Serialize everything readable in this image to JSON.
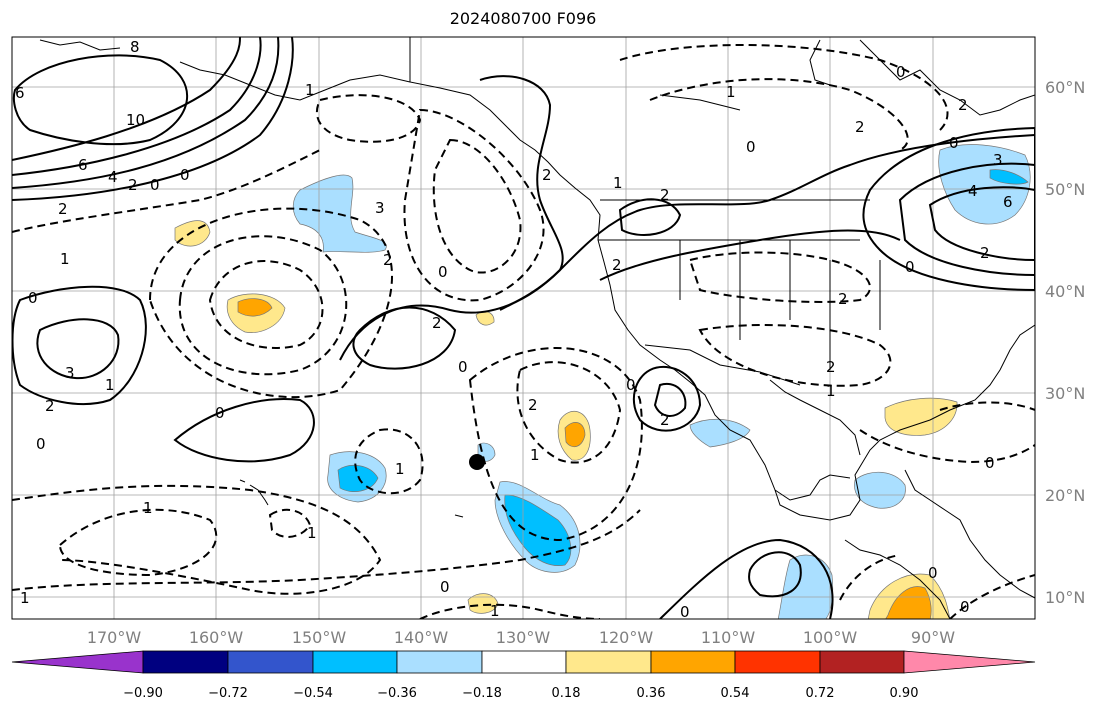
{
  "title": "2024080700 F096",
  "colors": {
    "background": "#ffffff",
    "grid": "#a0a0a0",
    "coast": "#000000",
    "axis_labels": "#808080"
  },
  "map": {
    "lon_range": [
      -180,
      -80
    ],
    "lat_range": [
      8,
      65
    ],
    "lat_labels": [
      "60°N",
      "50°N",
      "40°N",
      "30°N",
      "20°N",
      "10°N"
    ],
    "lon_labels": [
      "170°W",
      "160°W",
      "150°W",
      "140°W",
      "130°W",
      "120°W",
      "110°W",
      "100°W",
      "90°W"
    ],
    "marker": {
      "type": "point",
      "lon": -134.5,
      "lat": 23.3,
      "color": "#000000"
    }
  },
  "contour_labels": [
    "8",
    "6",
    "10",
    "6",
    "4",
    "2",
    "0",
    "0",
    "2",
    "1",
    "3",
    "2",
    "1",
    "3",
    "2",
    "0",
    "1",
    "0",
    "0",
    "2",
    "2",
    "0",
    "2",
    "2",
    "0",
    "1",
    "2",
    "0",
    "2",
    "1",
    "2",
    "0",
    "1",
    "0",
    "1",
    "1",
    "1",
    "0",
    "1",
    "0",
    "0",
    "2",
    "1",
    "2",
    "0",
    "3",
    "4",
    "6",
    "0",
    "2",
    "1",
    "2",
    "0",
    "0"
  ],
  "colorbar": {
    "colors": [
      "#9933cc",
      "#000080",
      "#3355cc",
      "#00bfff",
      "#aadfff",
      "#ffffff",
      "#ffe88c",
      "#ffa500",
      "#ff3300",
      "#b22222",
      "#ff88aa"
    ],
    "tick_labels": [
      "−0.90",
      "−0.72",
      "−0.54",
      "−0.36",
      "−0.18",
      "0.18",
      "0.36",
      "0.54",
      "0.72",
      "0.90"
    ]
  }
}
